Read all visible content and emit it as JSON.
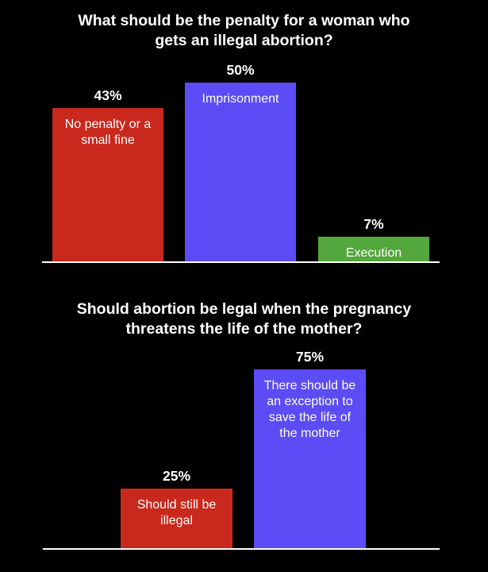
{
  "chart_data": [
    {
      "type": "bar",
      "title": "What should be the penalty for a woman who\ngets an illegal abortion?",
      "categories": [
        "No penalty or a small fine",
        "Imprisonment",
        "Execution"
      ],
      "values": [
        43,
        50,
        7
      ],
      "value_labels": [
        "43%",
        "50%",
        "7%"
      ],
      "colors": [
        "#c8291c",
        "#5b4cf5",
        "#54a73c"
      ],
      "ylim": [
        0,
        50
      ],
      "grid": false
    },
    {
      "type": "bar",
      "title": "Should abortion be legal when the pregnancy\nthreatens the life of the mother?",
      "categories": [
        "Should still be illegal",
        "There should be an exception to save the life of the mother"
      ],
      "values": [
        25,
        75
      ],
      "value_labels": [
        "25%",
        "75%"
      ],
      "colors": [
        "#c8291c",
        "#5b4cf5"
      ],
      "ylim": [
        0,
        75
      ],
      "grid": false
    }
  ]
}
